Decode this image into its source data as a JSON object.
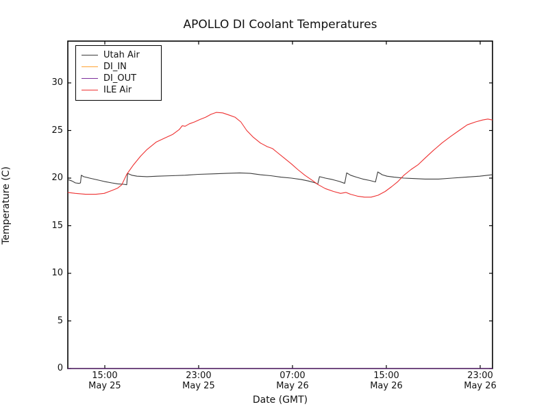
{
  "chart_data": {
    "type": "line",
    "title": "APOLLO DI Coolant Temperatures",
    "xlabel": "Date (GMT)",
    "ylabel": "Temperature (C)",
    "grid": false,
    "legend_position": "upper left",
    "x_encoding": "hours since May 25 00:00 GMT",
    "xlim": [
      11.85,
      48.05
    ],
    "ylim": [
      0,
      34.39
    ],
    "y_ticks": [
      0,
      5,
      10,
      15,
      20,
      25,
      30
    ],
    "x_ticks": [
      {
        "t": 15,
        "time": "15:00",
        "date": "May 25"
      },
      {
        "t": 23,
        "time": "23:00",
        "date": "May 25"
      },
      {
        "t": 31,
        "time": "07:00",
        "date": "May 26"
      },
      {
        "t": 39,
        "time": "15:00",
        "date": "May 26"
      },
      {
        "t": 47,
        "time": "23:00",
        "date": "May 26"
      }
    ],
    "series": [
      {
        "name": "Utah Air",
        "color": "#3a3a3a",
        "points": [
          [
            11.85,
            19.85
          ],
          [
            12.2,
            19.7
          ],
          [
            12.5,
            19.5
          ],
          [
            12.8,
            19.45
          ],
          [
            12.93,
            19.5
          ],
          [
            13.0,
            20.3
          ],
          [
            13.2,
            20.15
          ],
          [
            13.7,
            20.0
          ],
          [
            14.25,
            19.85
          ],
          [
            14.95,
            19.65
          ],
          [
            15.6,
            19.5
          ],
          [
            16.1,
            19.4
          ],
          [
            16.6,
            19.35
          ],
          [
            16.87,
            19.3
          ],
          [
            16.95,
            20.5
          ],
          [
            17.3,
            20.3
          ],
          [
            17.75,
            20.2
          ],
          [
            18.6,
            20.15
          ],
          [
            19.5,
            20.2
          ],
          [
            20.7,
            20.25
          ],
          [
            21.85,
            20.3
          ],
          [
            23.0,
            20.4
          ],
          [
            24.2,
            20.45
          ],
          [
            25.35,
            20.5
          ],
          [
            26.5,
            20.55
          ],
          [
            27.4,
            20.5
          ],
          [
            28.25,
            20.35
          ],
          [
            29.15,
            20.25
          ],
          [
            30.0,
            20.1
          ],
          [
            30.9,
            20.0
          ],
          [
            31.75,
            19.85
          ],
          [
            32.35,
            19.7
          ],
          [
            32.95,
            19.5
          ],
          [
            33.15,
            19.35
          ],
          [
            33.3,
            20.15
          ],
          [
            33.8,
            20.0
          ],
          [
            34.4,
            19.85
          ],
          [
            35.0,
            19.65
          ],
          [
            35.45,
            19.45
          ],
          [
            35.62,
            20.55
          ],
          [
            35.95,
            20.3
          ],
          [
            36.45,
            20.1
          ],
          [
            37.0,
            19.9
          ],
          [
            37.6,
            19.75
          ],
          [
            38.07,
            19.6
          ],
          [
            38.27,
            20.65
          ],
          [
            38.65,
            20.35
          ],
          [
            39.05,
            20.2
          ],
          [
            39.65,
            20.1
          ],
          [
            40.5,
            20.0
          ],
          [
            41.4,
            19.95
          ],
          [
            42.3,
            19.9
          ],
          [
            43.45,
            19.9
          ],
          [
            44.6,
            20.0
          ],
          [
            45.8,
            20.1
          ],
          [
            46.95,
            20.2
          ],
          [
            48.05,
            20.35
          ]
        ]
      },
      {
        "name": "DI_IN",
        "color": "#ffa333",
        "points": [
          [
            11.85,
            0
          ],
          [
            48.05,
            0
          ]
        ]
      },
      {
        "name": "DI_OUT",
        "color": "#7c2d9b",
        "points": [
          [
            11.85,
            0
          ],
          [
            48.05,
            0
          ]
        ]
      },
      {
        "name": "ILE Air",
        "color": "#ee3030",
        "points": [
          [
            11.85,
            18.5
          ],
          [
            12.5,
            18.4
          ],
          [
            13.35,
            18.3
          ],
          [
            14.25,
            18.3
          ],
          [
            14.95,
            18.4
          ],
          [
            15.6,
            18.7
          ],
          [
            16.1,
            18.95
          ],
          [
            16.45,
            19.3
          ],
          [
            16.87,
            20.4
          ],
          [
            17.45,
            21.4
          ],
          [
            18.05,
            22.3
          ],
          [
            18.6,
            23.0
          ],
          [
            19.4,
            23.8
          ],
          [
            20.1,
            24.2
          ],
          [
            20.8,
            24.6
          ],
          [
            21.35,
            25.1
          ],
          [
            21.6,
            25.5
          ],
          [
            21.85,
            25.45
          ],
          [
            22.2,
            25.7
          ],
          [
            22.65,
            25.9
          ],
          [
            23.1,
            26.15
          ],
          [
            23.6,
            26.4
          ],
          [
            24.05,
            26.7
          ],
          [
            24.5,
            26.9
          ],
          [
            25.05,
            26.85
          ],
          [
            25.65,
            26.6
          ],
          [
            26.1,
            26.4
          ],
          [
            26.6,
            25.9
          ],
          [
            27.1,
            25.0
          ],
          [
            27.65,
            24.3
          ],
          [
            28.25,
            23.7
          ],
          [
            28.85,
            23.3
          ],
          [
            29.3,
            23.1
          ],
          [
            29.7,
            22.7
          ],
          [
            30.3,
            22.1
          ],
          [
            30.9,
            21.5
          ],
          [
            31.45,
            20.9
          ],
          [
            32.05,
            20.3
          ],
          [
            32.65,
            19.8
          ],
          [
            33.2,
            19.3
          ],
          [
            33.8,
            18.9
          ],
          [
            34.5,
            18.6
          ],
          [
            35.1,
            18.4
          ],
          [
            35.55,
            18.5
          ],
          [
            35.95,
            18.3
          ],
          [
            36.55,
            18.1
          ],
          [
            37.15,
            18.0
          ],
          [
            37.7,
            18.0
          ],
          [
            38.3,
            18.2
          ],
          [
            38.9,
            18.6
          ],
          [
            39.45,
            19.1
          ],
          [
            39.95,
            19.6
          ],
          [
            40.5,
            20.3
          ],
          [
            41.1,
            20.9
          ],
          [
            41.7,
            21.4
          ],
          [
            42.3,
            22.1
          ],
          [
            43.0,
            22.9
          ],
          [
            43.75,
            23.7
          ],
          [
            44.5,
            24.4
          ],
          [
            45.2,
            25.0
          ],
          [
            45.9,
            25.6
          ],
          [
            46.6,
            25.9
          ],
          [
            47.2,
            26.1
          ],
          [
            47.65,
            26.2
          ],
          [
            48.05,
            26.1
          ]
        ]
      }
    ]
  }
}
